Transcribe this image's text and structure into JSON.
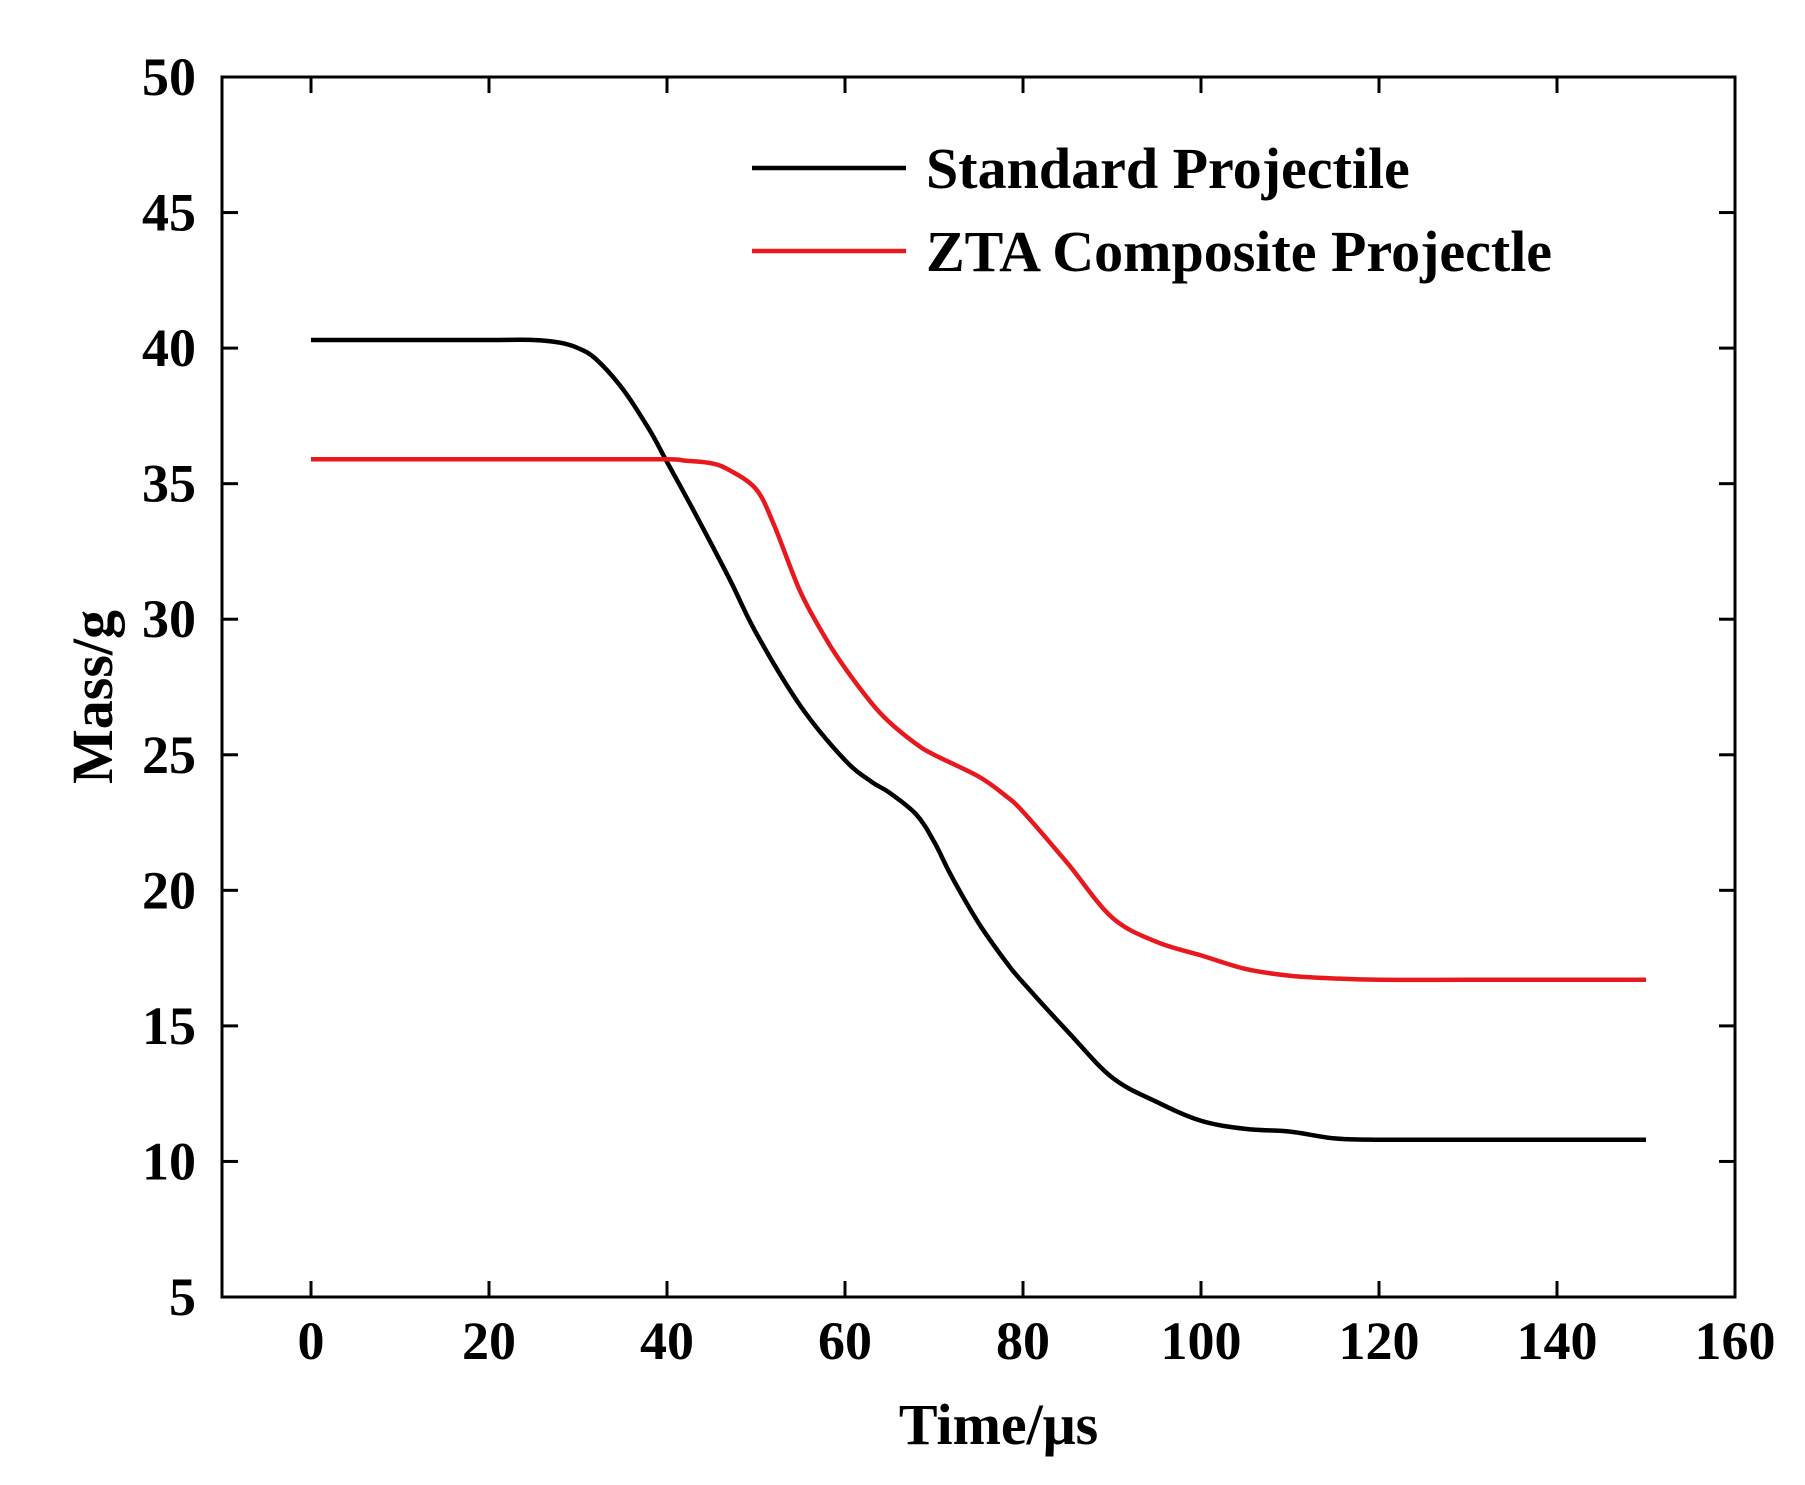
{
  "chart_data": {
    "type": "line",
    "title": "",
    "xlabel": "Time/μs",
    "ylabel": "Mass/g",
    "xlim": [
      -10,
      160
    ],
    "ylim": [
      5,
      50
    ],
    "xticks": [
      0,
      20,
      40,
      60,
      80,
      100,
      120,
      140,
      160
    ],
    "yticks": [
      5,
      10,
      15,
      20,
      25,
      30,
      35,
      40,
      45,
      50
    ],
    "grid": false,
    "legend_position": "top-right",
    "series": [
      {
        "name": "Standard Projectile",
        "color": "#000000",
        "x": [
          0,
          10,
          20,
          25,
          28,
          30,
          32,
          35,
          38,
          40,
          43,
          47,
          50,
          55,
          60,
          63,
          65,
          68,
          70,
          72,
          75,
          78,
          80,
          85,
          90,
          95,
          100,
          105,
          110,
          115,
          120,
          130,
          140,
          150
        ],
        "y": [
          40.3,
          40.3,
          40.3,
          40.3,
          40.2,
          40.0,
          39.6,
          38.5,
          37.0,
          35.8,
          34.0,
          31.5,
          29.5,
          26.8,
          24.8,
          24.0,
          23.6,
          22.8,
          21.8,
          20.5,
          18.8,
          17.4,
          16.6,
          14.8,
          13.1,
          12.2,
          11.5,
          11.2,
          11.1,
          10.85,
          10.8,
          10.8,
          10.8,
          10.8
        ]
      },
      {
        "name": "ZTA Composite Projectle",
        "color": "#e8191e",
        "x": [
          0,
          10,
          20,
          30,
          40,
          42,
          45,
          47,
          50,
          52,
          55,
          58,
          60,
          63,
          65,
          68,
          70,
          75,
          78,
          80,
          85,
          90,
          95,
          100,
          105,
          110,
          115,
          120,
          130,
          140,
          150
        ],
        "y": [
          35.9,
          35.9,
          35.9,
          35.9,
          35.9,
          35.85,
          35.75,
          35.5,
          34.8,
          33.5,
          31.0,
          29.2,
          28.2,
          26.9,
          26.2,
          25.4,
          25.0,
          24.2,
          23.5,
          22.9,
          21.0,
          19.0,
          18.1,
          17.6,
          17.1,
          16.85,
          16.75,
          16.7,
          16.7,
          16.7,
          16.7
        ]
      }
    ]
  }
}
